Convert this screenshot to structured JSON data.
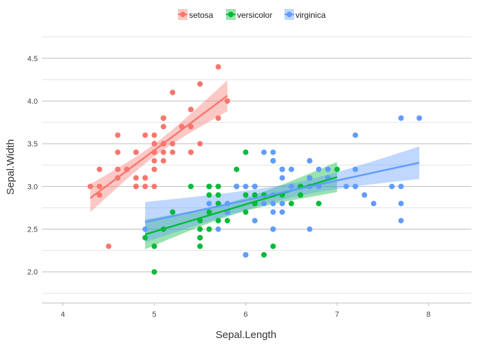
{
  "chart_data": {
    "type": "scatter",
    "title": "",
    "xlabel": "Sepal.Length",
    "ylabel": "Sepal.Width",
    "xlim": [
      3.77,
      8.47
    ],
    "ylim": [
      1.636,
      4.82
    ],
    "xticks": [
      4,
      5,
      6,
      7,
      8
    ],
    "xtick_labels": [
      "4",
      "5",
      "6",
      "7",
      "8"
    ],
    "yticks": [
      2.0,
      2.5,
      3.0,
      3.5,
      4.0,
      4.5
    ],
    "ytick_labels": [
      "2.0",
      "2.5",
      "3.0",
      "3.5",
      "4.0",
      "4.5"
    ],
    "yminor": [
      1.75,
      2.25,
      2.75,
      3.25,
      3.75,
      4.25,
      4.75
    ],
    "grid": true,
    "legend_position": "top-center",
    "smooth": "lm with 95% confidence band",
    "series": [
      {
        "name": "setosa",
        "color": "#F8766D",
        "x": [
          5.1,
          4.9,
          4.7,
          4.6,
          5.0,
          5.4,
          4.6,
          5.0,
          4.4,
          4.9,
          5.4,
          4.8,
          4.8,
          4.3,
          5.8,
          5.7,
          5.4,
          5.1,
          5.7,
          5.1,
          5.4,
          5.1,
          4.6,
          5.1,
          4.8,
          5.0,
          5.0,
          5.2,
          5.2,
          4.7,
          4.8,
          5.4,
          5.2,
          5.5,
          4.9,
          5.0,
          5.5,
          4.9,
          4.4,
          5.1,
          5.0,
          4.5,
          4.4,
          5.0,
          5.1,
          4.8,
          5.1,
          4.6,
          5.3,
          5.0
        ],
        "y": [
          3.5,
          3.0,
          3.2,
          3.1,
          3.6,
          3.9,
          3.4,
          3.4,
          2.9,
          3.1,
          3.7,
          3.4,
          3.0,
          3.0,
          4.0,
          4.4,
          3.9,
          3.5,
          3.8,
          3.8,
          3.4,
          3.7,
          3.6,
          3.3,
          3.4,
          3.0,
          3.4,
          3.5,
          3.4,
          3.2,
          3.1,
          3.4,
          4.1,
          4.2,
          3.1,
          3.2,
          3.5,
          3.6,
          3.0,
          3.4,
          3.5,
          2.3,
          3.2,
          3.5,
          3.8,
          3.0,
          3.8,
          3.2,
          3.7,
          3.3
        ]
      },
      {
        "name": "versicolor",
        "color": "#00BA38",
        "x": [
          7.0,
          6.4,
          6.9,
          5.5,
          6.5,
          5.7,
          6.3,
          4.9,
          6.6,
          5.2,
          5.0,
          5.9,
          6.0,
          6.1,
          5.6,
          6.7,
          5.6,
          5.8,
          6.2,
          5.6,
          5.9,
          6.1,
          6.3,
          6.1,
          6.4,
          6.6,
          6.8,
          6.7,
          6.0,
          5.7,
          5.5,
          5.5,
          5.8,
          6.0,
          5.4,
          6.0,
          6.7,
          6.3,
          5.6,
          5.5,
          5.5,
          6.1,
          5.8,
          5.0,
          5.6,
          5.7,
          5.7,
          6.2,
          5.1,
          5.7
        ],
        "y": [
          3.2,
          3.2,
          3.1,
          2.3,
          2.8,
          2.8,
          3.3,
          2.4,
          2.9,
          2.7,
          2.0,
          3.0,
          2.2,
          2.9,
          2.9,
          3.1,
          3.0,
          2.7,
          2.2,
          2.5,
          3.2,
          2.8,
          2.5,
          2.8,
          2.9,
          3.0,
          2.8,
          3.0,
          2.9,
          2.6,
          2.4,
          2.4,
          2.7,
          2.7,
          3.0,
          3.4,
          3.1,
          2.3,
          3.0,
          2.5,
          2.6,
          3.0,
          2.6,
          2.3,
          2.7,
          3.0,
          2.9,
          2.9,
          2.5,
          2.8
        ]
      },
      {
        "name": "virginica",
        "color": "#619CFF",
        "x": [
          6.3,
          5.8,
          7.1,
          6.3,
          6.5,
          7.6,
          4.9,
          7.3,
          6.7,
          7.2,
          6.5,
          6.4,
          6.8,
          5.7,
          5.8,
          6.4,
          6.5,
          7.7,
          7.7,
          6.0,
          6.9,
          5.6,
          7.7,
          6.3,
          6.7,
          7.2,
          6.2,
          6.1,
          6.4,
          7.2,
          7.4,
          7.9,
          6.4,
          6.3,
          6.1,
          7.7,
          6.3,
          6.4,
          6.0,
          6.9,
          6.7,
          6.9,
          5.8,
          6.8,
          6.7,
          6.7,
          6.3,
          6.5,
          6.2,
          5.9
        ],
        "y": [
          3.3,
          2.7,
          3.0,
          2.9,
          3.0,
          3.0,
          2.5,
          2.9,
          2.5,
          3.6,
          3.2,
          2.7,
          3.0,
          2.5,
          2.8,
          3.2,
          3.0,
          3.8,
          2.6,
          2.2,
          3.2,
          2.8,
          2.8,
          2.7,
          3.3,
          3.2,
          2.8,
          3.0,
          2.8,
          3.0,
          2.8,
          3.8,
          2.8,
          2.8,
          2.6,
          3.0,
          3.4,
          3.1,
          3.0,
          3.1,
          3.1,
          3.1,
          2.7,
          3.2,
          3.3,
          3.0,
          2.5,
          3.0,
          3.4,
          3.0
        ]
      }
    ]
  }
}
